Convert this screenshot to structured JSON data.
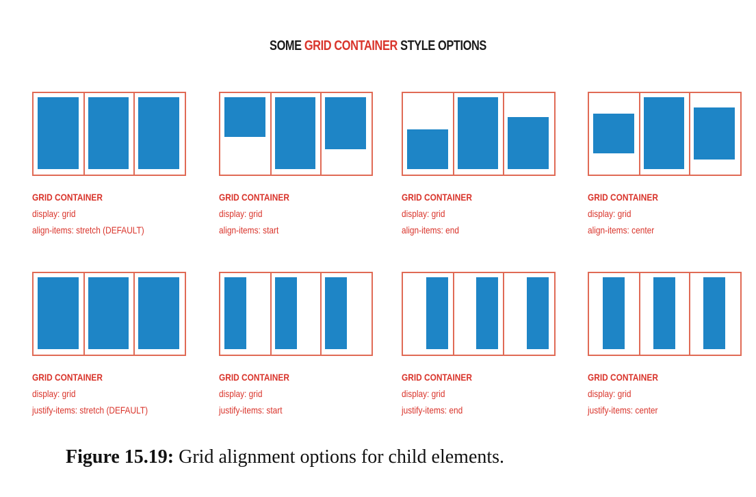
{
  "title": {
    "prefix": "SOME ",
    "accent": "GRID CONTAINER",
    "suffix": " STYLE OPTIONS",
    "accent_color": "#d9342b"
  },
  "colors": {
    "container_border": "#e06a55",
    "item_fill": "#1e85c6",
    "caption_text": "#d9342b"
  },
  "panels": [
    {
      "heading": "GRID CONTAINER",
      "line1": "display: grid",
      "line2": "align-items: stretch (DEFAULT)",
      "property": "align-items",
      "value": "stretch"
    },
    {
      "heading": "GRID CONTAINER",
      "line1": "display: grid",
      "line2": "align-items: start",
      "property": "align-items",
      "value": "start"
    },
    {
      "heading": "GRID CONTAINER",
      "line1": "display: grid",
      "line2": "align-items: end",
      "property": "align-items",
      "value": "end"
    },
    {
      "heading": "GRID CONTAINER",
      "line1": "display: grid",
      "line2": "align-items: center",
      "property": "align-items",
      "value": "center"
    },
    {
      "heading": "GRID CONTAINER",
      "line1": "display: grid",
      "line2": "justify-items: stretch (DEFAULT)",
      "property": "justify-items",
      "value": "stretch"
    },
    {
      "heading": "GRID CONTAINER",
      "line1": "display: grid",
      "line2": "justify-items: start",
      "property": "justify-items",
      "value": "start"
    },
    {
      "heading": "GRID CONTAINER",
      "line1": "display: grid",
      "line2": "justify-items: end",
      "property": "justify-items",
      "value": "end"
    },
    {
      "heading": "GRID CONTAINER",
      "line1": "display: grid",
      "line2": "justify-items: center",
      "property": "justify-items",
      "value": "center"
    }
  ],
  "figure_caption": {
    "label": "Figure 15.19:",
    "text": " Grid alignment options for child elements."
  }
}
